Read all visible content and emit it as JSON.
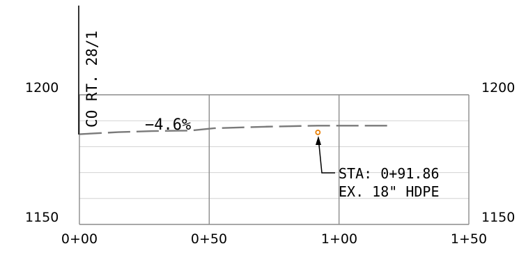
{
  "chart_data": {
    "type": "line",
    "x_ticks": [
      "0+00",
      "0+50",
      "1+00",
      "1+50"
    ],
    "x_range": [
      0,
      150
    ],
    "y_ticks": [
      "1150",
      "1200"
    ],
    "y_range": [
      1150,
      1200
    ],
    "grid": true,
    "series": [
      {
        "style": "dashed",
        "x": [
          0,
          15,
          28,
          43,
          52,
          72,
          92,
          106,
          119
        ],
        "y": [
          1184.8,
          1185.6,
          1186.0,
          1186.2,
          1187.1,
          1187.7,
          1188.1,
          1188.1,
          1188.1
        ]
      }
    ],
    "labels": {
      "vertical_note": "CO RT. 28/1",
      "grade": "−4.6%",
      "callout_line1": "STA:  0+91.86",
      "callout_line2": "EX.  18\"  HDPE"
    },
    "point": {
      "x": 91.86,
      "y": 1185.5,
      "color": "#e8820c"
    }
  }
}
